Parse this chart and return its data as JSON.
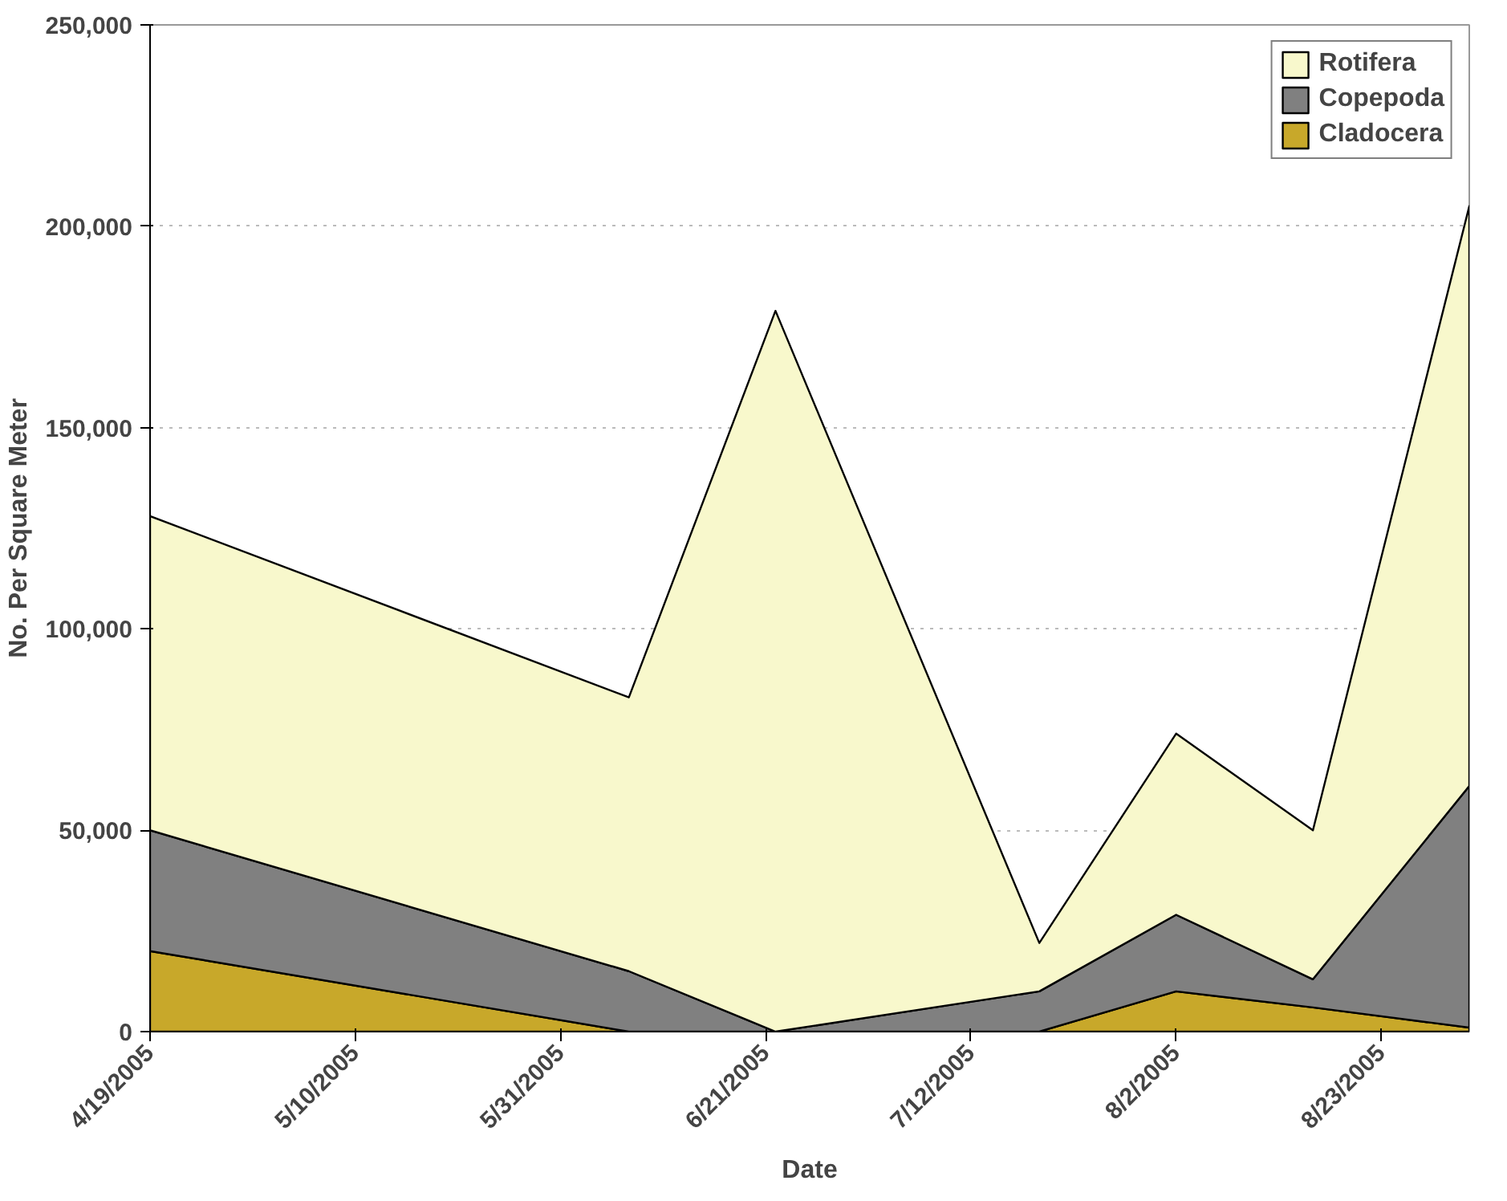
{
  "chart_data": {
    "type": "area",
    "stacked": true,
    "xlabel": "Date",
    "ylabel": "No. Per Square Meter",
    "x": [
      "2005-04-19",
      "2005-06-07",
      "2005-06-22",
      "2005-07-19",
      "2005-08-02",
      "2005-08-16",
      "2005-09-01"
    ],
    "series": [
      {
        "name": "Cladocera",
        "color": "#c8a82a",
        "values": [
          20000,
          0,
          0,
          0,
          10000,
          6000,
          1000
        ]
      },
      {
        "name": "Copepoda",
        "color": "#808080",
        "values": [
          30000,
          15000,
          0,
          10000,
          19000,
          7000,
          60000
        ]
      },
      {
        "name": "Rotifera",
        "color": "#f8f8cc",
        "values": [
          78000,
          68000,
          179000,
          12000,
          45000,
          37000,
          144000
        ]
      }
    ],
    "xlim": [
      "2005-04-19",
      "2005-09-01"
    ],
    "xticks": [
      {
        "value": "2005-04-19",
        "label": "4/19/2005"
      },
      {
        "value": "2005-05-10",
        "label": "5/10/2005"
      },
      {
        "value": "2005-05-31",
        "label": "5/31/2005"
      },
      {
        "value": "2005-06-21",
        "label": "6/21/2005"
      },
      {
        "value": "2005-07-12",
        "label": "7/12/2005"
      },
      {
        "value": "2005-08-02",
        "label": "8/2/2005"
      },
      {
        "value": "2005-08-23",
        "label": "8/23/2005"
      }
    ],
    "ylim": [
      0,
      250000
    ],
    "yticks": [
      {
        "value": 0,
        "label": "0"
      },
      {
        "value": 50000,
        "label": "50,000"
      },
      {
        "value": 100000,
        "label": "100,000"
      },
      {
        "value": 150000,
        "label": "150,000"
      },
      {
        "value": 200000,
        "label": "200,000"
      },
      {
        "value": 250000,
        "label": "250,000"
      }
    ],
    "grid": "y",
    "legend": "top right"
  }
}
